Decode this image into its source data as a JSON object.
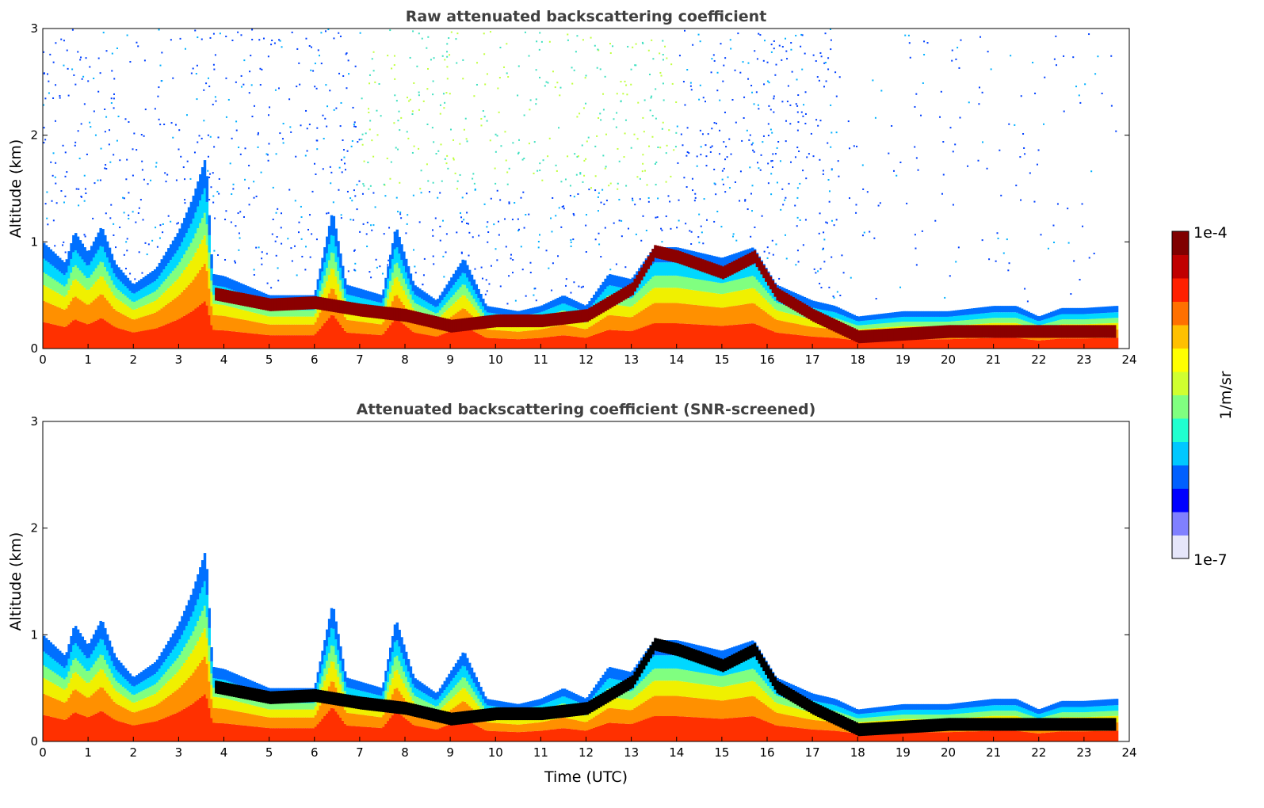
{
  "chart_data": [
    {
      "type": "heatmap",
      "title": "Raw attenuated backscattering coefficient",
      "xlabel": "",
      "ylabel": "Altitude (km)",
      "xlim": [
        0,
        24
      ],
      "ylim": [
        0,
        3
      ],
      "xticks": [
        "0",
        "1",
        "2",
        "3",
        "4",
        "5",
        "6",
        "7",
        "8",
        "9",
        "10",
        "11",
        "12",
        "13",
        "14",
        "15",
        "16",
        "17",
        "18",
        "19",
        "20",
        "21",
        "22",
        "23",
        "24"
      ],
      "yticks": [
        "0",
        "1",
        "2",
        "3"
      ],
      "noise": true,
      "layer_color": "#8b0000"
    },
    {
      "type": "heatmap",
      "title": "Attenuated backscattering coefficient (SNR-screened)",
      "xlabel": "Time (UTC)",
      "ylabel": "Altitude (km)",
      "xlim": [
        0,
        24
      ],
      "ylim": [
        0,
        3
      ],
      "xticks": [
        "0",
        "1",
        "2",
        "3",
        "4",
        "5",
        "6",
        "7",
        "8",
        "9",
        "10",
        "11",
        "12",
        "13",
        "14",
        "15",
        "16",
        "17",
        "18",
        "19",
        "20",
        "21",
        "22",
        "23",
        "24"
      ],
      "yticks": [
        "0",
        "1",
        "2",
        "3"
      ],
      "noise": false,
      "layer_color": "#000000"
    }
  ],
  "boundary_layer_top_km": {
    "time": [
      0,
      0.5,
      0.7,
      1,
      1.3,
      1.6,
      2,
      2.5,
      3,
      3.3,
      3.6,
      3.75,
      4,
      5,
      6,
      6.4,
      6.7,
      7.5,
      7.8,
      8.2,
      8.7,
      9.3,
      9.8,
      10.5,
      11,
      11.5,
      12,
      12.5,
      13,
      13.5,
      14,
      15,
      15.7,
      16.2,
      17,
      17.5,
      18,
      19,
      20,
      21,
      21.5,
      22,
      22.5,
      23,
      23.7
    ],
    "altitude": [
      1.0,
      0.8,
      1.1,
      0.9,
      1.15,
      0.8,
      0.6,
      0.75,
      1.1,
      1.4,
      1.8,
      0.7,
      0.68,
      0.5,
      0.5,
      1.3,
      0.6,
      0.5,
      1.15,
      0.6,
      0.45,
      0.85,
      0.4,
      0.35,
      0.4,
      0.5,
      0.4,
      0.7,
      0.65,
      0.95,
      0.95,
      0.85,
      0.95,
      0.6,
      0.45,
      0.4,
      0.3,
      0.35,
      0.35,
      0.4,
      0.4,
      0.3,
      0.38,
      0.38,
      0.4
    ]
  },
  "aerosol_layer_km": {
    "time": [
      3.8,
      5,
      6,
      7,
      8,
      9,
      10,
      11,
      12,
      13,
      13.5,
      14,
      15,
      15.7,
      16.2,
      17,
      18,
      20,
      22,
      23.7
    ],
    "altitude": [
      0.5,
      0.4,
      0.42,
      0.35,
      0.3,
      0.2,
      0.25,
      0.25,
      0.3,
      0.55,
      0.9,
      0.85,
      0.7,
      0.85,
      0.5,
      0.3,
      0.1,
      0.15,
      0.15,
      0.15
    ]
  },
  "colorbar": {
    "label": "1/m/sr",
    "max_label": "1e-4",
    "min_label": "1e-7",
    "colors": [
      "#e6e6fa",
      "#8080ff",
      "#0000ff",
      "#0060ff",
      "#00c8ff",
      "#20ffd0",
      "#80ff80",
      "#d0ff30",
      "#ffff00",
      "#ffc000",
      "#ff7000",
      "#ff2000",
      "#c00000",
      "#800000"
    ]
  }
}
